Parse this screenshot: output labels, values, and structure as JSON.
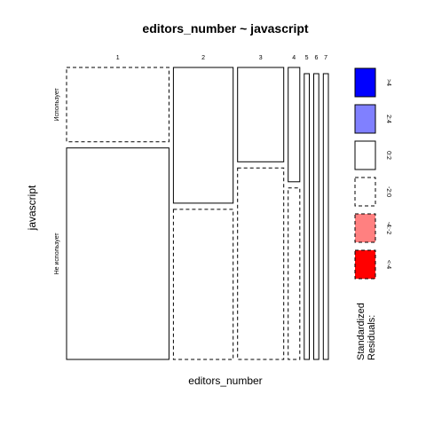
{
  "chart_data": {
    "type": "mosaic",
    "title": "editors_number ~ javascript",
    "xlabel": "editors_number",
    "ylabel": "javascript",
    "x_categories": [
      "1",
      "2",
      "3",
      "4",
      "5",
      "6",
      "7"
    ],
    "y_categories": [
      "Использует",
      "Не использует"
    ],
    "x_proportions": [
      0.362,
      0.211,
      0.163,
      0.041,
      0.018,
      0.018,
      0.018
    ],
    "cells": [
      {
        "x": "1",
        "y": "Использует",
        "proportion": 0.26,
        "residual_band": "-2:0"
      },
      {
        "x": "1",
        "y": "Не использует",
        "proportion": 0.74,
        "residual_band": "0:2"
      },
      {
        "x": "2",
        "y": "Использует",
        "proportion": 0.475,
        "residual_band": "0:2"
      },
      {
        "x": "2",
        "y": "Не использует",
        "proportion": 0.525,
        "residual_band": "-2:0"
      },
      {
        "x": "3",
        "y": "Использует",
        "proportion": 0.33,
        "residual_band": "0:2"
      },
      {
        "x": "3",
        "y": "Не использует",
        "proportion": 0.67,
        "residual_band": "-2:0"
      },
      {
        "x": "4",
        "y": "Использует",
        "proportion": 0.4,
        "residual_band": "0:2"
      },
      {
        "x": "4",
        "y": "Не использует",
        "proportion": 0.6,
        "residual_band": "-2:0"
      },
      {
        "x": "5",
        "y": "Использует",
        "proportion": 0.0,
        "residual_band": "-2:0"
      },
      {
        "x": "5",
        "y": "Не использует",
        "proportion": 1.0,
        "residual_band": "0:2"
      },
      {
        "x": "6",
        "y": "Использует",
        "proportion": 0.0,
        "residual_band": "-2:0"
      },
      {
        "x": "6",
        "y": "Не использует",
        "proportion": 1.0,
        "residual_band": "0:2"
      },
      {
        "x": "7",
        "y": "Использует",
        "proportion": 0.0,
        "residual_band": "-2:0"
      },
      {
        "x": "7",
        "y": "Не использует",
        "proportion": 1.0,
        "residual_band": "0:2"
      }
    ],
    "legend": {
      "title_lines": [
        "Standardized",
        "Residuals:"
      ],
      "entries": [
        {
          "label": ">4",
          "fill": "#0000ff",
          "dashed": false
        },
        {
          "label": "2:4",
          "fill": "#8080ff",
          "dashed": false
        },
        {
          "label": "0:2",
          "fill": "#ffffff",
          "dashed": false
        },
        {
          "label": "-2:0",
          "fill": "#ffffff",
          "dashed": true
        },
        {
          "label": "-4:-2",
          "fill": "#ff8080",
          "dashed": true
        },
        {
          "label": "<-4",
          "fill": "#ff0000",
          "dashed": true
        }
      ]
    }
  }
}
